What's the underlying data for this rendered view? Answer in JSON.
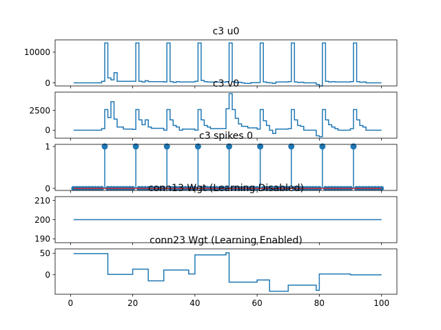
{
  "colors": {
    "line": "#1f77b4",
    "baseline": "#d62728",
    "axes": "#000000",
    "background": "#ffffff"
  },
  "chart_data": [
    {
      "type": "line",
      "step": true,
      "title": "c3 u0",
      "xlim": [
        -4.95,
        104.95
      ],
      "ylim": [
        -1000,
        14000
      ],
      "xticks": [
        0,
        20,
        40,
        60,
        80,
        100
      ],
      "yticks": [
        0,
        10000
      ],
      "ytick_labels": [
        "0",
        "10000"
      ],
      "series": [
        {
          "x": [
            1,
            10,
            11,
            12,
            13,
            14,
            15,
            20,
            21,
            22,
            23,
            24,
            25,
            30,
            31,
            32,
            33,
            34,
            35,
            40,
            41,
            42,
            43,
            44,
            45,
            50,
            51,
            52,
            53,
            54,
            55,
            56,
            58,
            60,
            61,
            62,
            63,
            64,
            65,
            66,
            70,
            71,
            72,
            73,
            74,
            75,
            79,
            80,
            81,
            82,
            83,
            84,
            85,
            90,
            91,
            92,
            93,
            94,
            95,
            100
          ],
          "y": [
            0,
            500,
            13000,
            1600,
            1000,
            3300,
            500,
            500,
            13000,
            500,
            300,
            700,
            400,
            300,
            13000,
            400,
            150,
            400,
            300,
            500,
            13000,
            800,
            400,
            300,
            250,
            400,
            13000,
            400,
            50,
            200,
            0,
            -150,
            50,
            100,
            13000,
            300,
            100,
            0,
            -150,
            300,
            400,
            13000,
            300,
            150,
            200,
            0,
            -500,
            -1000,
            13000,
            500,
            300,
            400,
            300,
            400,
            13000,
            400,
            200,
            300,
            0,
            0
          ]
        }
      ]
    },
    {
      "type": "line",
      "step": true,
      "title": "c3 v0",
      "xlim": [
        -4.95,
        104.95
      ],
      "ylim": [
        -1000,
        4800
      ],
      "xticks": [
        0,
        20,
        40,
        60,
        80,
        100
      ],
      "yticks": [
        0,
        2500
      ],
      "ytick_labels": [
        "0",
        "2500"
      ],
      "series": [
        {
          "x": [
            1,
            10,
            11,
            12,
            13,
            14,
            15,
            17,
            20,
            21,
            22,
            23,
            24,
            25,
            26,
            30,
            31,
            32,
            33,
            34,
            35,
            36,
            40,
            41,
            42,
            43,
            44,
            45,
            50,
            51,
            52,
            53,
            54,
            55,
            57,
            60,
            61,
            62,
            63,
            64,
            65,
            66,
            70,
            71,
            72,
            73,
            74,
            75,
            79,
            80,
            81,
            82,
            83,
            84,
            85,
            86,
            90,
            91,
            92,
            93,
            94,
            95,
            100
          ],
          "y": [
            0,
            200,
            2600,
            1600,
            3600,
            1400,
            400,
            150,
            100,
            2600,
            1300,
            700,
            1300,
            400,
            250,
            0,
            2600,
            1300,
            600,
            400,
            0,
            150,
            0,
            2600,
            1300,
            600,
            400,
            200,
            2700,
            4600,
            2600,
            1500,
            800,
            500,
            300,
            150,
            2600,
            1200,
            600,
            0,
            -400,
            150,
            200,
            2600,
            1300,
            600,
            500,
            0,
            -700,
            -800,
            2600,
            1300,
            700,
            400,
            200,
            0,
            200,
            2600,
            1300,
            600,
            400,
            0,
            0
          ]
        }
      ]
    },
    {
      "type": "stem",
      "title": "c3 spikes 0",
      "xlim": [
        -4.95,
        104.95
      ],
      "ylim": [
        -0.05,
        1.05
      ],
      "xticks": [
        0,
        20,
        40,
        60,
        80,
        100
      ],
      "yticks": [
        0,
        1
      ],
      "ytick_labels": [
        "0",
        "1"
      ],
      "series": [
        {
          "x": [
            1,
            100
          ],
          "spikes": [
            11,
            21,
            31,
            41,
            51,
            61,
            71,
            81,
            91
          ],
          "value": 1
        }
      ]
    },
    {
      "type": "line",
      "step": true,
      "title": "conn13 Wgt (Learning Disabled)",
      "xlim": [
        -4.95,
        104.95
      ],
      "ylim": [
        188,
        212
      ],
      "xticks": [
        0,
        20,
        40,
        60,
        80,
        100
      ],
      "yticks": [
        190,
        200,
        210
      ],
      "ytick_labels": [
        "190",
        "200",
        "210"
      ],
      "series": [
        {
          "x": [
            1,
            100
          ],
          "y": [
            200,
            200
          ]
        }
      ]
    },
    {
      "type": "line",
      "step": true,
      "title": "conn23 Wgt (Learning Enabled)",
      "xlim": [
        -4.95,
        104.95
      ],
      "ylim": [
        -45,
        60
      ],
      "xticks": [
        0,
        20,
        40,
        60,
        80,
        100
      ],
      "xtick_labels": [
        "0",
        "20",
        "40",
        "60",
        "80",
        "100"
      ],
      "yticks": [
        0,
        50
      ],
      "ytick_labels": [
        "0",
        "50"
      ],
      "series": [
        {
          "x": [
            1,
            12,
            20,
            25,
            30,
            38,
            40,
            50,
            51,
            60,
            64,
            70,
            77,
            79,
            80,
            90,
            100
          ],
          "y": [
            49,
            1,
            13,
            -14,
            11,
            2,
            46,
            51,
            -17,
            -12,
            -38,
            -24,
            -24,
            -36,
            2,
            0,
            0
          ]
        }
      ]
    }
  ]
}
